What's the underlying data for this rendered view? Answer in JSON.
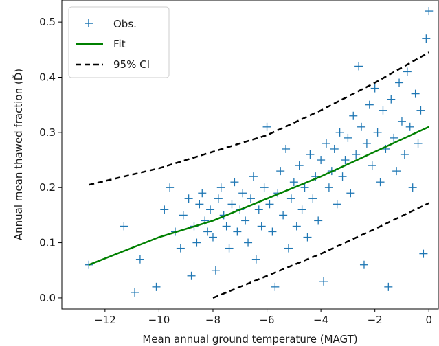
{
  "chart_data": {
    "type": "scatter",
    "title": "",
    "xlabel": "Mean annual ground temperature (MAGT)",
    "ylabel": "Annual mean thawed fraction (D̃)",
    "xlim": [
      -13.6,
      0.35
    ],
    "ylim": [
      -0.02,
      0.54
    ],
    "x_ticks": [
      -12,
      -10,
      -8,
      -6,
      -4,
      -2,
      0
    ],
    "x_tick_labels": [
      "−12",
      "−10",
      "−8",
      "−6",
      "−4",
      "−2",
      "0"
    ],
    "y_ticks": [
      0.0,
      0.1,
      0.2,
      0.3,
      0.4,
      0.5
    ],
    "y_tick_labels": [
      "0.0",
      "0.1",
      "0.2",
      "0.3",
      "0.4",
      "0.5"
    ],
    "grid": false,
    "legend": {
      "placement": "top-left",
      "entries": [
        "Obs.",
        "Fit",
        "95% CI"
      ]
    },
    "colors": {
      "obs": "#1f77b4",
      "fit": "#008000",
      "ci": "#000000"
    },
    "series": [
      {
        "name": "Obs.",
        "kind": "scatter",
        "marker": "plus",
        "points": [
          [
            -12.6,
            0.06
          ],
          [
            -11.3,
            0.13
          ],
          [
            -10.9,
            0.01
          ],
          [
            -10.7,
            0.07
          ],
          [
            -10.1,
            0.02
          ],
          [
            -9.8,
            0.16
          ],
          [
            -9.6,
            0.2
          ],
          [
            -9.4,
            0.12
          ],
          [
            -9.2,
            0.09
          ],
          [
            -9.1,
            0.15
          ],
          [
            -8.9,
            0.18
          ],
          [
            -8.8,
            0.04
          ],
          [
            -8.7,
            0.13
          ],
          [
            -8.6,
            0.1
          ],
          [
            -8.5,
            0.17
          ],
          [
            -8.4,
            0.19
          ],
          [
            -8.3,
            0.14
          ],
          [
            -8.2,
            0.12
          ],
          [
            -8.1,
            0.16
          ],
          [
            -8.0,
            0.11
          ],
          [
            -7.9,
            0.05
          ],
          [
            -7.8,
            0.18
          ],
          [
            -7.7,
            0.2
          ],
          [
            -7.6,
            0.15
          ],
          [
            -7.5,
            0.13
          ],
          [
            -7.4,
            0.09
          ],
          [
            -7.3,
            0.17
          ],
          [
            -7.2,
            0.21
          ],
          [
            -7.1,
            0.12
          ],
          [
            -7.0,
            0.16
          ],
          [
            -6.9,
            0.19
          ],
          [
            -6.8,
            0.14
          ],
          [
            -6.7,
            0.1
          ],
          [
            -6.6,
            0.18
          ],
          [
            -6.5,
            0.22
          ],
          [
            -6.4,
            0.07
          ],
          [
            -6.3,
            0.16
          ],
          [
            -6.2,
            0.13
          ],
          [
            -6.1,
            0.2
          ],
          [
            -6.0,
            0.31
          ],
          [
            -5.9,
            0.17
          ],
          [
            -5.8,
            0.12
          ],
          [
            -5.7,
            0.02
          ],
          [
            -5.6,
            0.19
          ],
          [
            -5.5,
            0.23
          ],
          [
            -5.4,
            0.15
          ],
          [
            -5.3,
            0.27
          ],
          [
            -5.2,
            0.09
          ],
          [
            -5.1,
            0.18
          ],
          [
            -5.0,
            0.21
          ],
          [
            -4.9,
            0.13
          ],
          [
            -4.8,
            0.24
          ],
          [
            -4.7,
            0.16
          ],
          [
            -4.6,
            0.2
          ],
          [
            -4.5,
            0.11
          ],
          [
            -4.4,
            0.26
          ],
          [
            -4.3,
            0.18
          ],
          [
            -4.2,
            0.22
          ],
          [
            -4.1,
            0.14
          ],
          [
            -4.0,
            0.25
          ],
          [
            -3.9,
            0.03
          ],
          [
            -3.8,
            0.28
          ],
          [
            -3.7,
            0.2
          ],
          [
            -3.6,
            0.23
          ],
          [
            -3.5,
            0.27
          ],
          [
            -3.4,
            0.17
          ],
          [
            -3.3,
            0.3
          ],
          [
            -3.2,
            0.22
          ],
          [
            -3.1,
            0.25
          ],
          [
            -3.0,
            0.29
          ],
          [
            -2.9,
            0.19
          ],
          [
            -2.8,
            0.33
          ],
          [
            -2.7,
            0.26
          ],
          [
            -2.6,
            0.42
          ],
          [
            -2.5,
            0.31
          ],
          [
            -2.4,
            0.06
          ],
          [
            -2.3,
            0.28
          ],
          [
            -2.2,
            0.35
          ],
          [
            -2.1,
            0.24
          ],
          [
            -2.0,
            0.38
          ],
          [
            -1.9,
            0.3
          ],
          [
            -1.8,
            0.21
          ],
          [
            -1.7,
            0.34
          ],
          [
            -1.6,
            0.27
          ],
          [
            -1.5,
            0.02
          ],
          [
            -1.4,
            0.36
          ],
          [
            -1.3,
            0.29
          ],
          [
            -1.2,
            0.23
          ],
          [
            -1.1,
            0.39
          ],
          [
            -1.0,
            0.32
          ],
          [
            -0.9,
            0.26
          ],
          [
            -0.8,
            0.41
          ],
          [
            -0.7,
            0.31
          ],
          [
            -0.6,
            0.2
          ],
          [
            -0.5,
            0.37
          ],
          [
            -0.4,
            0.28
          ],
          [
            -0.3,
            0.34
          ],
          [
            -0.2,
            0.08
          ],
          [
            -0.1,
            0.47
          ],
          [
            0.0,
            0.52
          ]
        ]
      },
      {
        "name": "Fit",
        "kind": "line",
        "points": [
          [
            -12.6,
            0.06
          ],
          [
            -10.0,
            0.11
          ],
          [
            -8.0,
            0.14
          ],
          [
            -6.0,
            0.18
          ],
          [
            -4.0,
            0.22
          ],
          [
            -2.0,
            0.265
          ],
          [
            0.0,
            0.31
          ]
        ]
      },
      {
        "name": "95% CI",
        "kind": "line",
        "dashed": true,
        "points": [
          [
            -12.6,
            0.205
          ],
          [
            -10.0,
            0.235
          ],
          [
            -8.0,
            0.265
          ],
          [
            -6.0,
            0.295
          ],
          [
            -4.0,
            0.34
          ],
          [
            -2.0,
            0.39
          ],
          [
            0.0,
            0.445
          ]
        ]
      },
      {
        "name": "",
        "kind": "line",
        "dashed": true,
        "points": [
          [
            -8.0,
            0.0
          ],
          [
            -6.0,
            0.04
          ],
          [
            -4.0,
            0.08
          ],
          [
            -2.0,
            0.125
          ],
          [
            0.0,
            0.172
          ]
        ]
      }
    ]
  }
}
